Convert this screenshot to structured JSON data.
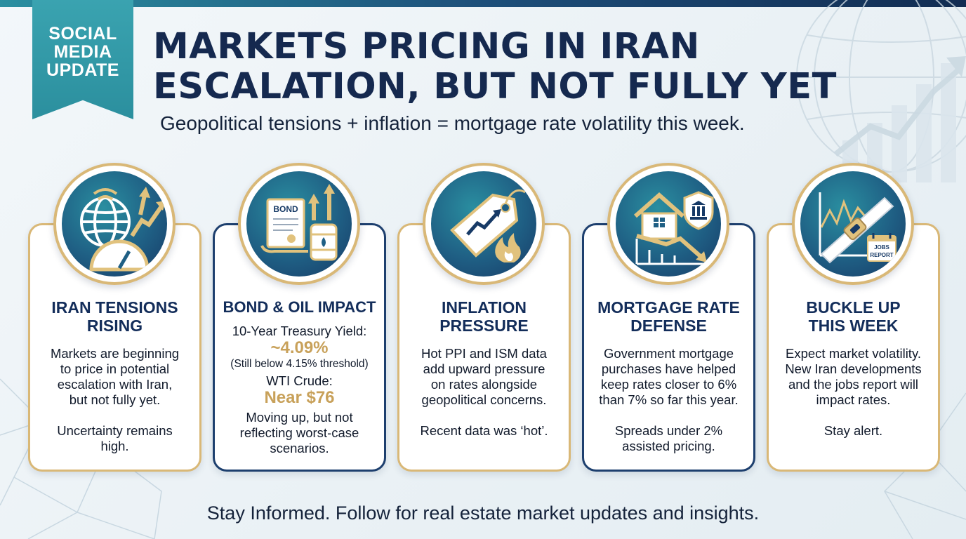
{
  "ribbon": {
    "line1": "SOCIAL",
    "line2": "MEDIA",
    "line3": "UPDATE"
  },
  "headline": {
    "line1": "MARKETS PRICING IN IRAN",
    "line2": "ESCALATION, BUT NOT FULLY YET"
  },
  "subtitle": "Geopolitical tensions + inflation = mortgage rate volatility this week.",
  "cards": [
    {
      "title_line1": "IRAN TENSIONS",
      "title_line2": "RISING",
      "body": [
        "Markets are beginning",
        "to price in potential",
        "escalation with Iran,",
        "but not fully yet."
      ],
      "note": [
        "Uncertainty remains",
        "high."
      ],
      "icon": "globe-gauge-icon"
    },
    {
      "title_line1": "BOND & OIL IMPACT",
      "yield_label": "10-Year Treasury Yield:",
      "yield_value": "~4.09%",
      "yield_note": "(Still below 4.15% threshold)",
      "crude_label": "WTI Crude:",
      "crude_value": "Near $76",
      "body": [
        "Moving up, but not",
        "reflecting worst-case",
        "scenarios."
      ],
      "icon": "bond-oil-icon",
      "bond_text": "BOND"
    },
    {
      "title_line1": "INFLATION",
      "title_line2": "PRESSURE",
      "body": [
        "Hot PPI and ISM data",
        "add upward pressure",
        "on rates alongside",
        "geopolitical concerns."
      ],
      "note": [
        "Recent data was ‘hot’."
      ],
      "icon": "price-tag-fire-icon"
    },
    {
      "title_line1": "MORTGAGE RATE",
      "title_line2": "DEFENSE",
      "body": [
        "Government mortgage",
        "purchases have helped",
        "keep rates closer to 6%",
        "than 7% so far this year."
      ],
      "note": [
        "Spreads under 2%",
        "assisted pricing."
      ],
      "icon": "house-shield-icon"
    },
    {
      "title_line1": "BUCKLE UP",
      "title_line2": "THIS WEEK",
      "body": [
        "Expect market volatility.",
        "New Iran developments",
        "and the jobs report will",
        "impact rates."
      ],
      "note": [
        "Stay alert."
      ],
      "icon": "seatbelt-icon",
      "badge_line1": "JOBS",
      "badge_line2": "REPORT"
    }
  ],
  "footer": "Stay Informed. Follow for real estate market updates and insights.",
  "colors": {
    "navy": "#15294f",
    "teal": "#2b8f9e",
    "gold": "#d9b877",
    "gold_text": "#c8a15a"
  }
}
